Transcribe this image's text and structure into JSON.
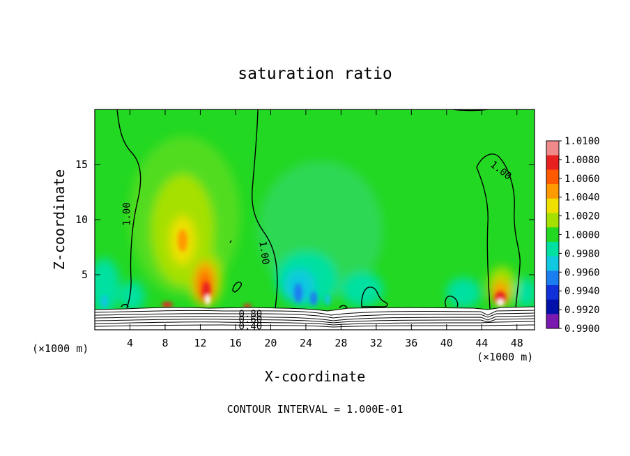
{
  "chart_data": {
    "type": "heatmap",
    "title": "saturation ratio",
    "xlabel": "X-coordinate",
    "ylabel": "Z-coordinate",
    "x_unit_left": "(×1000 m)",
    "x_unit_right": "(×1000 m)",
    "footer": "CONTOUR INTERVAL = 1.000E-01",
    "xlim": [
      0,
      50
    ],
    "ylim": [
      0,
      20
    ],
    "xticks": [
      4,
      8,
      12,
      16,
      20,
      24,
      28,
      32,
      36,
      40,
      44,
      48
    ],
    "yticks": [
      5,
      10,
      15
    ],
    "colorbar": {
      "labels": [
        "1.0100",
        "1.0080",
        "1.0060",
        "1.0040",
        "1.0020",
        "1.0000",
        "0.9980",
        "0.9960",
        "0.9940",
        "0.9920",
        "0.9900"
      ],
      "colors": [
        "#f08a8a",
        "#e82020",
        "#ff5a00",
        "#ff9a00",
        "#f0e000",
        "#a6e000",
        "#22d822",
        "#00e0a0",
        "#10c8e0",
        "#1a7ef0",
        "#1030d8",
        "#0010a8",
        "#7a1ab0"
      ]
    },
    "contour_labels": [
      {
        "text": "1.00",
        "x": 3.6,
        "z": 10.5,
        "angle": -90
      },
      {
        "text": "1.00",
        "x": 19.3,
        "z": 7.0,
        "angle": 82
      },
      {
        "text": "1.00",
        "x": 46.2,
        "z": 14.5,
        "angle": 38
      },
      {
        "text": "0.80",
        "x": 17.7,
        "z": 1.45,
        "angle": 0
      },
      {
        "text": "0.60",
        "x": 17.7,
        "z": 0.95,
        "angle": 0
      },
      {
        "text": "0.40",
        "x": 17.7,
        "z": 0.35,
        "angle": 0
      }
    ]
  }
}
